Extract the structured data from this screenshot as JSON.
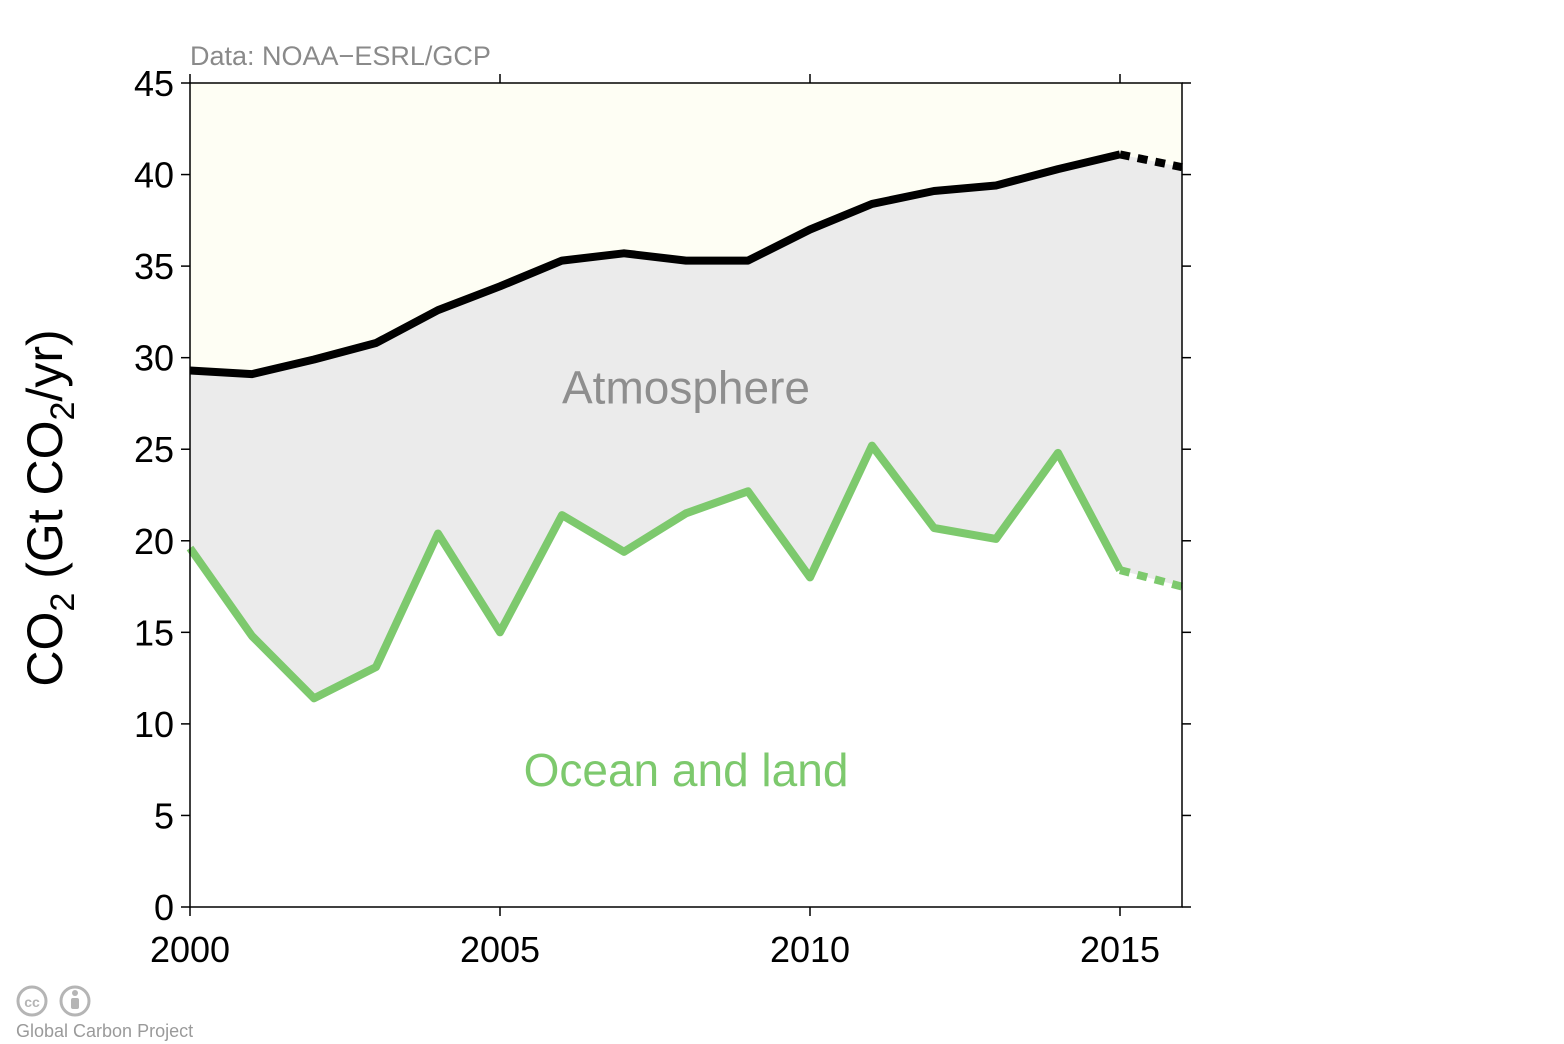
{
  "source_note": "Data: NOAA−ESRL/GCP",
  "credit": "Global Carbon Project",
  "license_icons": [
    "cc-icon",
    "attribution-icon"
  ],
  "chart_data": {
    "type": "area",
    "ylabel_main": "CO",
    "ylabel_sub": "2",
    "ylabel_mid": " (Gt CO",
    "ylabel_sub2": "2",
    "ylabel_end": "/yr)",
    "xlim": [
      2000,
      2016
    ],
    "ylim": [
      0,
      45
    ],
    "x_ticks": [
      2000,
      2005,
      2010,
      2015
    ],
    "y_ticks": [
      0,
      5,
      10,
      15,
      20,
      25,
      30,
      35,
      40,
      45
    ],
    "regions": {
      "atmosphere": {
        "label": "Atmosphere",
        "color": "#8e8e8e",
        "fill": "#ebebeb"
      },
      "ocean_land": {
        "label": "Ocean and land",
        "color": "#7dc96d",
        "fill": "#ffffff"
      },
      "top_fill": "#fefef4"
    },
    "series": [
      {
        "key": "total",
        "color": "#000000",
        "x": [
          2000,
          2001,
          2002,
          2003,
          2004,
          2005,
          2006,
          2007,
          2008,
          2009,
          2010,
          2011,
          2012,
          2013,
          2014,
          2015
        ],
        "values": [
          29.3,
          29.1,
          29.9,
          30.8,
          32.6,
          33.9,
          35.3,
          35.7,
          35.3,
          35.3,
          37.0,
          38.4,
          39.1,
          39.4,
          40.3,
          41.1
        ],
        "projection": {
          "x": [
            2015,
            2016
          ],
          "values": [
            41.1,
            40.4
          ]
        }
      },
      {
        "key": "ocean_land",
        "color": "#7dc96d",
        "x": [
          2000,
          2001,
          2002,
          2003,
          2004,
          2005,
          2006,
          2007,
          2008,
          2009,
          2010,
          2011,
          2012,
          2013,
          2014,
          2015
        ],
        "values": [
          19.6,
          14.8,
          11.4,
          13.1,
          20.4,
          15.0,
          21.4,
          19.4,
          21.5,
          22.7,
          18.0,
          25.2,
          20.7,
          20.1,
          24.8,
          18.4
        ],
        "projection": {
          "x": [
            2015,
            2016
          ],
          "values": [
            18.4,
            17.5
          ]
        }
      }
    ]
  }
}
